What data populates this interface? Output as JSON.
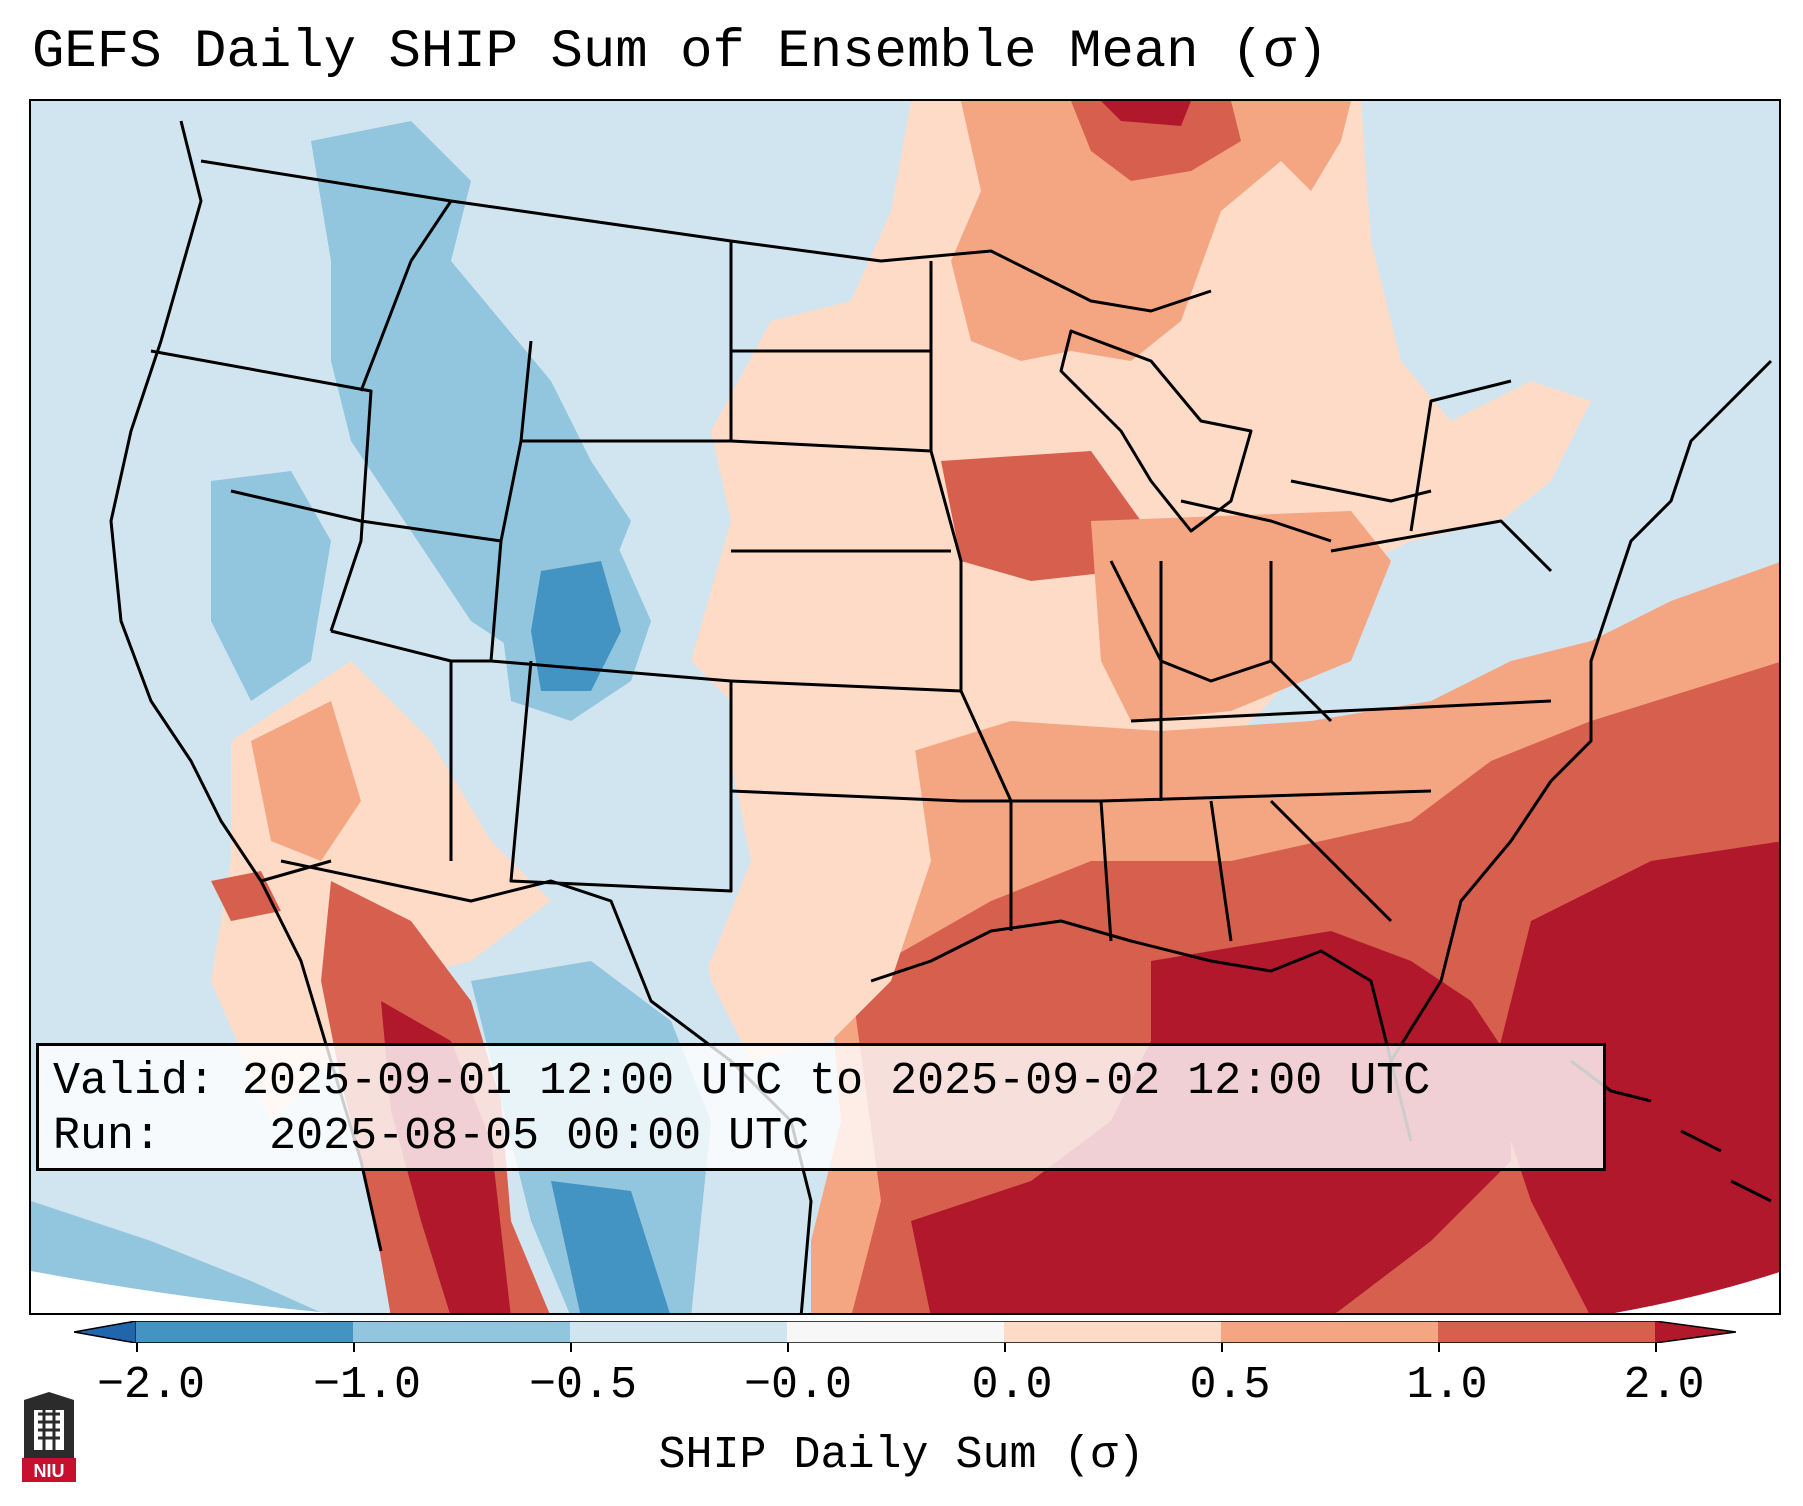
{
  "title": "GEFS Daily SHIP Sum of Ensemble Mean (σ)",
  "info": {
    "valid_label": "Valid:",
    "valid_value": "2025-09-01 12:00 UTC to 2025-09-02 12:00 UTC",
    "run_label": "Run:",
    "run_value": "2025-08-05 00:00 UTC"
  },
  "colorbar": {
    "label": "SHIP Daily Sum (σ)",
    "ticks": [
      "−2.0",
      "−1.0",
      "−0.5",
      "−0.0",
      "0.0",
      "0.5",
      "1.0",
      "2.0"
    ],
    "colors": [
      "#4393c3",
      "#92c5de",
      "#d1e5f0",
      "#f7f7f7",
      "#fddbc7",
      "#f4a582",
      "#d6604d",
      "#b2182b"
    ],
    "extend_low_color": "#2166ac",
    "extend_high_color": "#b2182b"
  },
  "logo": {
    "text": "NIU",
    "color": "#c8102e"
  }
}
